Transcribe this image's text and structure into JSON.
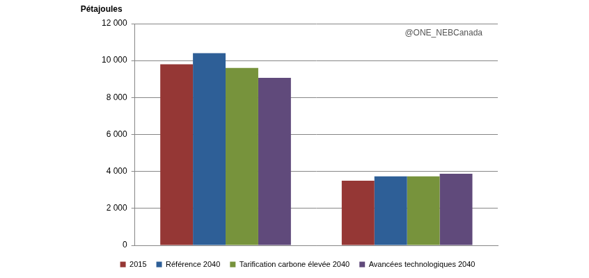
{
  "chart_data": {
    "type": "bar",
    "y_label": "Pétajoules",
    "annotation": "@ONE_NEBCanada",
    "categories": [
      null,
      null
    ],
    "series": [
      {
        "name": "2015",
        "color": "#953735",
        "values": [
          9800,
          3500
        ]
      },
      {
        "name": "Référence 2040",
        "color": "#2e5f97",
        "values": [
          10400,
          3730
        ]
      },
      {
        "name": "Tarification carbone élevée 2040",
        "color": "#77933c",
        "values": [
          9600,
          3730
        ]
      },
      {
        "name": "Avancées technologiques 2040",
        "color": "#604a7b",
        "values": [
          9070,
          3870
        ]
      }
    ],
    "ylim": [
      0,
      12000
    ],
    "yticks": [
      0,
      {
        "value": 2000,
        "label": "2 000"
      },
      {
        "value": 4000,
        "label": "4 000"
      },
      {
        "value": 6000,
        "label": "6 000"
      },
      {
        "value": 8000,
        "label": "8 000"
      },
      {
        "value": 10000,
        "label": "10 000"
      },
      {
        "value": 12000,
        "label": "12 000"
      }
    ],
    "grid": true,
    "legend": "bottom",
    "tick_labels": "y"
  }
}
